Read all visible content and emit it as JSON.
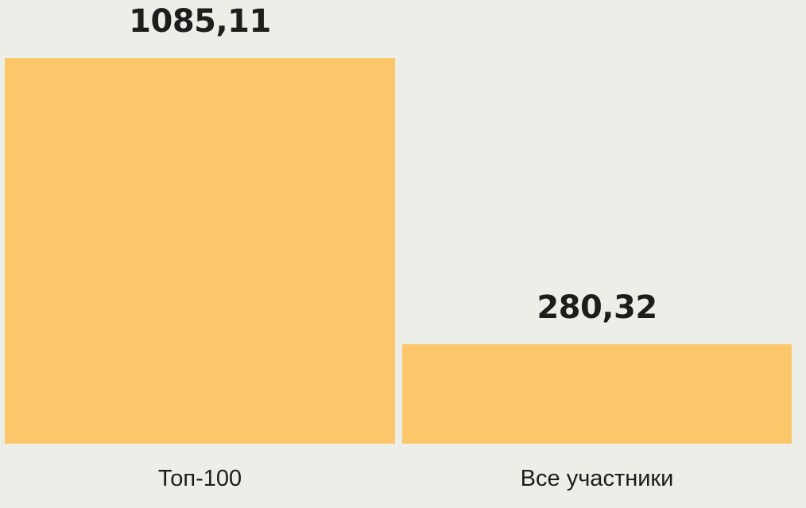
{
  "chart_data": {
    "type": "bar",
    "categories": [
      "Топ-100",
      "Все участники"
    ],
    "values": [
      1085.11,
      280.32
    ],
    "value_labels": [
      "1085,11",
      "280,32"
    ],
    "title": "",
    "xlabel": "",
    "ylabel": "",
    "ylim": [
      0,
      1085.11
    ],
    "grid": false,
    "legend": false,
    "bar_color": "#FCC76A",
    "background_color": "#EEEEE9",
    "text_color": "#1D1D1B"
  }
}
